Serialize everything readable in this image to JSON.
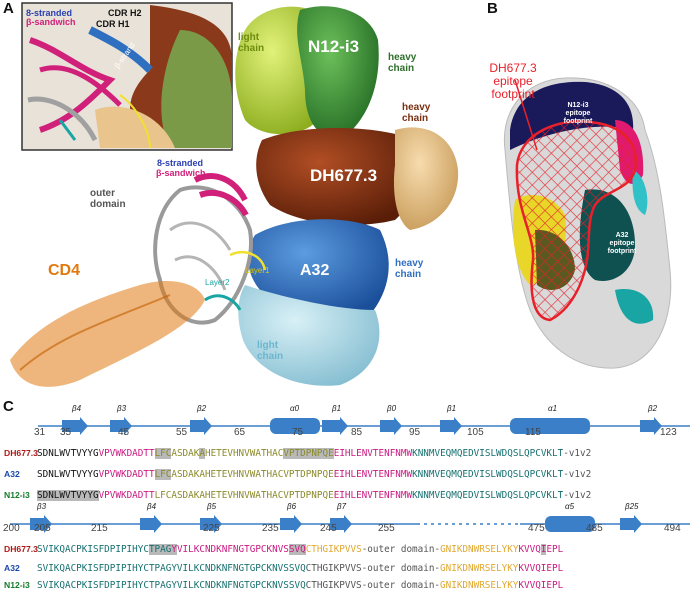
{
  "panelA": {
    "letter": "A",
    "inset": {
      "label_8stranded": "8-stranded",
      "label_bsandwich": "β-sandwich",
      "cdr_h2": "CDR H2",
      "cdr_h1": "CDR H1",
      "strand": "β-strand"
    },
    "labels": {
      "light_chain_top": "light\nchain",
      "n12": "N12-i3",
      "heavy_chain_n12": "heavy\nchain",
      "heavy_chain_dh": "heavy\nchain",
      "dh677": "DH677.3",
      "eight_stranded": "8-stranded",
      "bsandwich": "β-sandwich",
      "outer": "outer\ndomain",
      "cd4": "CD4",
      "layer2": "Layer2",
      "layer1": "Layer1",
      "a32": "A32",
      "heavy_chain_a32": "heavy\nchain",
      "light_chain_a32": "light\nchain"
    },
    "colors": {
      "n12_light": "#b5d335",
      "n12_heavy": "#3f8f3a",
      "dh_heavy": "#7a2e12",
      "dh_light": "#e9c48c",
      "a32_heavy": "#2f6fc0",
      "a32_light": "#a8d8e8",
      "cd4": "#e07a10",
      "sandwich": "#d1207a",
      "outer": "#a0a0a0"
    }
  },
  "panelB": {
    "letter": "B",
    "dh_footprint": "DH677.3\nepitope\nfootprint",
    "n12_footprint": "N12-i3\nepitope\nfootprint",
    "a32_footprint": "A32\nepitope\nfootprint",
    "footprint_color": "#e8202a"
  },
  "panelC": {
    "letter": "C",
    "row1": {
      "numbers": [
        "31",
        "35",
        "45",
        "55",
        "65",
        "75",
        "85",
        "95",
        "105",
        "115",
        "123"
      ],
      "ss": [
        "β4",
        "β3",
        "β2",
        "α0",
        "β1",
        "β0",
        "β1",
        "α1",
        "β2"
      ],
      "sequences": [
        {
          "name": "DH677.3",
          "name_color": "#b01818",
          "segments": [
            {
              "t": "SDNLWVTVYYG",
              "c": "#111111",
              "hl": false
            },
            {
              "t": "VPVWKDADTT",
              "c": "#c81a82",
              "hl": false
            },
            {
              "t": "LFC",
              "c": "#8a8a2a",
              "hl": true
            },
            {
              "t": "ASDAK",
              "c": "#8a8a2a",
              "hl": false
            },
            {
              "t": "A",
              "c": "#8a8a2a",
              "hl": true
            },
            {
              "t": "HETEVHNVWATHAC",
              "c": "#8a8a2a",
              "hl": false
            },
            {
              "t": "VPTDPNPQE",
              "c": "#8a8a2a",
              "hl": true
            },
            {
              "t": "EIHLENVTENFNMW",
              "c": "#c81a82",
              "hl": false
            },
            {
              "t": "KNNMVEQMQEDVISLWDQSLQPCVKLT",
              "c": "#177070",
              "hl": false
            },
            {
              "t": "-v1v2",
              "c": "#555555",
              "hl": false
            }
          ]
        },
        {
          "name": "A32",
          "name_color": "#1a48a8",
          "segments": [
            {
              "t": "SDNLWVTVYYG",
              "c": "#111111",
              "hl": false
            },
            {
              "t": "VPVWKDADTT",
              "c": "#c81a82",
              "hl": false
            },
            {
              "t": "LFC",
              "c": "#8a8a2a",
              "hl": true
            },
            {
              "t": "ASDAKAHETEVHNVWATHAC",
              "c": "#8a8a2a",
              "hl": false
            },
            {
              "t": "VPTDPNPQE",
              "c": "#8a8a2a",
              "hl": false
            },
            {
              "t": "EIHLENVTENFNMW",
              "c": "#c81a82",
              "hl": false
            },
            {
              "t": "KNNMVEQMQEDVISLWDQSLQPCVKLT",
              "c": "#177070",
              "hl": false
            },
            {
              "t": "-v1v2",
              "c": "#555555",
              "hl": false
            }
          ]
        },
        {
          "name": "N12-i3",
          "name_color": "#167a2a",
          "segments": [
            {
              "t": "SDNLWVTVYYG",
              "c": "#111111",
              "hl": true
            },
            {
              "t": "VPVWKDADTT",
              "c": "#c81a82",
              "hl": false
            },
            {
              "t": "LFCASDAKAHETEVHNVWATHACVPTDPNPQE",
              "c": "#8a8a2a",
              "hl": false
            },
            {
              "t": "EIHLENVTENFNMW",
              "c": "#c81a82",
              "hl": false
            },
            {
              "t": "KNNMVEQMQEDVISLWDQSLQPCVKLT",
              "c": "#177070",
              "hl": false
            },
            {
              "t": "-v1v2",
              "c": "#555555",
              "hl": false
            }
          ]
        }
      ]
    },
    "row2": {
      "numbers": [
        "200",
        "205",
        "215",
        "225",
        "235",
        "245",
        "255",
        "475",
        "485",
        "494"
      ],
      "ss": [
        "β3",
        "β4",
        "β5",
        "β6",
        "β7",
        "α5",
        "β25"
      ],
      "sequences": [
        {
          "name": "DH677.3",
          "name_color": "#b01818",
          "segments": [
            {
              "t": "SVIKQACPKISFDPIPIHYC",
              "c": "#177070",
              "hl": false
            },
            {
              "t": "TPAG",
              "c": "#177070",
              "hl": true
            },
            {
              "t": "Y",
              "c": "#c81a82",
              "hl": true
            },
            {
              "t": "VILKCNDKNFNGTGPCKNVS",
              "c": "#c81a82",
              "hl": false
            },
            {
              "t": "SVQ",
              "c": "#c81a82",
              "hl": true
            },
            {
              "t": "CTHGIKPVVS",
              "c": "#e0a830",
              "hl": false
            },
            {
              "t": "-outer domain-",
              "c": "#555555",
              "hl": false
            },
            {
              "t": "GNIKDNWRSELYKY",
              "c": "#e0a830",
              "hl": false
            },
            {
              "t": "KVVQ",
              "c": "#c81a82",
              "hl": false
            },
            {
              "t": "I",
              "c": "#c81a82",
              "hl": true
            },
            {
              "t": "EPL",
              "c": "#c81a82",
              "hl": false
            }
          ]
        },
        {
          "name": "A32",
          "name_color": "#1a48a8",
          "segments": [
            {
              "t": "SVIKQACPKISFDPIPIHYCTPAGYVILKCNDKNFNGTGPCKNVSSVQ",
              "c": "#177070",
              "hl": false
            },
            {
              "t": "CTHGIKPVVS",
              "c": "#555555",
              "hl": false
            },
            {
              "t": "-outer domain-",
              "c": "#555555",
              "hl": false
            },
            {
              "t": "GNIKDNWRSELYKY",
              "c": "#e0a830",
              "hl": false
            },
            {
              "t": "KVVQIEPL",
              "c": "#c81a82",
              "hl": false
            }
          ]
        },
        {
          "name": "N12-i3",
          "name_color": "#167a2a",
          "segments": [
            {
              "t": "SVIKQACPKISFDPIPIHYCTPAGYVILKCNDKNFNGTGPCKNVSSVQ",
              "c": "#177070",
              "hl": false
            },
            {
              "t": "CTHGIKPVVS",
              "c": "#555555",
              "hl": false
            },
            {
              "t": "-outer domain-",
              "c": "#555555",
              "hl": false
            },
            {
              "t": "GNIKDNWRSELYKY",
              "c": "#e0a830",
              "hl": false
            },
            {
              "t": "KVVQIEPL",
              "c": "#c81a82",
              "hl": false
            }
          ]
        }
      ]
    }
  }
}
